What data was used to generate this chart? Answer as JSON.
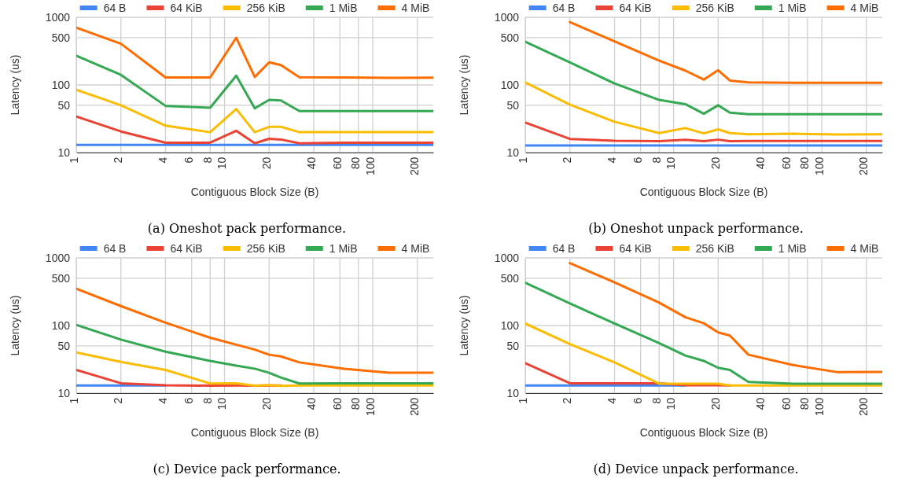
{
  "chart_data": [
    {
      "type": "line",
      "title": "(a) Oneshot pack performance.",
      "xlabel": "Contiguous Block Size (B)",
      "ylabel": "Latency (us)",
      "log": "xy",
      "grid": true,
      "legend": "top",
      "x": [
        1,
        2,
        4,
        8,
        12,
        16,
        20,
        24,
        32,
        64,
        128,
        256
      ],
      "xlim": [
        1,
        256
      ],
      "ylim": [
        10,
        1000
      ],
      "xticks": [
        1,
        2,
        4,
        6,
        8,
        10,
        20,
        40,
        60,
        80,
        100,
        200
      ],
      "yticks": [
        10,
        50,
        100,
        500,
        1000
      ],
      "series": [
        {
          "name": "64 B",
          "color": "#4285f4",
          "values": [
            13,
            13,
            13,
            13,
            13,
            13,
            13,
            13,
            13,
            13,
            13,
            13
          ]
        },
        {
          "name": "64 KiB",
          "color": "#ea4335",
          "values": [
            34,
            20.5,
            14,
            14,
            21,
            13.7,
            16,
            15.6,
            13.7,
            14,
            14,
            14
          ]
        },
        {
          "name": "256 KiB",
          "color": "#fbbc04",
          "values": [
            85,
            50,
            25,
            20,
            44,
            20,
            24,
            24,
            20,
            20,
            20,
            20
          ]
        },
        {
          "name": "1 MiB",
          "color": "#34a853",
          "values": [
            271,
            141,
            49,
            46,
            137,
            45,
            60,
            59,
            41,
            41,
            41,
            41
          ]
        },
        {
          "name": "4 MiB",
          "color": "#ff6d01",
          "values": [
            702,
            407,
            129,
            129,
            498,
            131,
            216,
            197,
            130,
            129,
            127,
            128
          ]
        }
      ]
    },
    {
      "type": "line",
      "title": "(b) Oneshot unpack performance.",
      "xlabel": "Contiguous Block Size (B)",
      "ylabel": "Latency (us)",
      "log": "xy",
      "grid": true,
      "legend": "top",
      "x": [
        1,
        2,
        4,
        8,
        12,
        16,
        20,
        24,
        32,
        64,
        128,
        256
      ],
      "xlim": [
        1,
        256
      ],
      "ylim": [
        10,
        1000
      ],
      "xticks": [
        1,
        2,
        4,
        6,
        8,
        10,
        20,
        40,
        60,
        80,
        100,
        200
      ],
      "yticks": [
        10,
        50,
        100,
        500,
        1000
      ],
      "series": [
        {
          "name": "64 B",
          "color": "#4285f4",
          "values": [
            12.7,
            12.7,
            12.7,
            12.7,
            12.7,
            12.7,
            12.7,
            12.7,
            12.7,
            12.7,
            12.7,
            12.7
          ]
        },
        {
          "name": "64 KiB",
          "color": "#ea4335",
          "values": [
            27.7,
            15.9,
            14.9,
            14.7,
            15.5,
            14.7,
            15.5,
            14.7,
            14.8,
            14.8,
            14.8,
            14.8
          ]
        },
        {
          "name": "256 KiB",
          "color": "#fbbc04",
          "values": [
            109,
            51,
            28.5,
            19.4,
            23,
            19.2,
            22,
            19.4,
            18.6,
            19,
            18.5,
            18.6
          ]
        },
        {
          "name": "1 MiB",
          "color": "#34a853",
          "values": [
            436,
            215,
            105,
            60,
            52,
            37.5,
            50,
            39,
            37,
            37,
            37,
            37
          ]
        },
        {
          "name": "4 MiB",
          "color": "#ff6d01",
          "values": [
            null,
            851,
            440,
            229,
            163,
            120,
            165,
            116,
            109,
            108,
            108,
            108
          ]
        }
      ]
    },
    {
      "type": "line",
      "title": "(c) Device pack performance.",
      "xlabel": "Contiguous Block Size (B)",
      "ylabel": "Latency (us)",
      "log": "xy",
      "grid": true,
      "legend": "top",
      "x": [
        1,
        2,
        4,
        8,
        12,
        16,
        20,
        24,
        32,
        64,
        128,
        256
      ],
      "xlim": [
        1,
        256
      ],
      "ylim": [
        10,
        1000
      ],
      "xticks": [
        1,
        2,
        4,
        6,
        8,
        10,
        20,
        40,
        60,
        80,
        100,
        200
      ],
      "yticks": [
        10,
        50,
        100,
        500,
        1000
      ],
      "series": [
        {
          "name": "64 B",
          "color": "#4285f4",
          "values": [
            13,
            13,
            13,
            null,
            null,
            null,
            null,
            null,
            null,
            null,
            null,
            null
          ]
        },
        {
          "name": "64 KiB",
          "color": "#ea4335",
          "values": [
            22,
            14,
            13.1,
            12.9,
            13,
            12.9,
            13,
            13,
            null,
            null,
            null,
            null
          ]
        },
        {
          "name": "256 KiB",
          "color": "#fbbc04",
          "values": [
            40,
            29,
            22,
            13.9,
            14,
            12.9,
            13.2,
            12.8,
            13,
            13,
            13,
            13
          ]
        },
        {
          "name": "1 MiB",
          "color": "#34a853",
          "values": [
            102,
            62,
            41,
            30,
            25.5,
            23,
            20,
            17,
            13.9,
            14,
            14,
            14
          ]
        },
        {
          "name": "4 MiB",
          "color": "#ff6d01",
          "values": [
            351,
            194,
            110,
            66,
            52,
            44,
            37,
            35,
            28.5,
            23,
            20,
            20
          ]
        }
      ]
    },
    {
      "type": "line",
      "title": "(d) Device unpack performance.",
      "xlabel": "Contiguous Block Size (B)",
      "ylabel": "Latency (us)",
      "log": "xy",
      "grid": true,
      "legend": "top",
      "x": [
        1,
        2,
        4,
        8,
        12,
        16,
        20,
        24,
        32,
        64,
        128,
        256
      ],
      "xlim": [
        1,
        256
      ],
      "ylim": [
        10,
        1000
      ],
      "xticks": [
        1,
        2,
        4,
        6,
        8,
        10,
        20,
        40,
        60,
        80,
        100,
        200
      ],
      "yticks": [
        10,
        50,
        100,
        500,
        1000
      ],
      "series": [
        {
          "name": "64 B",
          "color": "#4285f4",
          "values": [
            13,
            13,
            13,
            13,
            13,
            null,
            null,
            null,
            null,
            null,
            null,
            null
          ]
        },
        {
          "name": "64 KiB",
          "color": "#ea4335",
          "values": [
            27.8,
            14,
            14,
            14,
            13.1,
            13.1,
            13.1,
            13,
            null,
            null,
            null,
            null
          ]
        },
        {
          "name": "256 KiB",
          "color": "#fbbc04",
          "values": [
            107,
            53,
            28.5,
            13.8,
            13.8,
            13.8,
            13.8,
            13,
            13,
            13,
            13,
            13
          ]
        },
        {
          "name": "1 MiB",
          "color": "#34a853",
          "values": [
            430,
            212,
            107,
            55,
            36,
            30,
            23.7,
            22,
            14.6,
            13.8,
            13.8,
            13.8
          ]
        },
        {
          "name": "4 MiB",
          "color": "#ff6d01",
          "values": [
            null,
            840,
            434,
            218,
            133,
            108,
            79,
            71,
            37,
            26,
            20.4,
            20.6
          ]
        }
      ]
    }
  ]
}
